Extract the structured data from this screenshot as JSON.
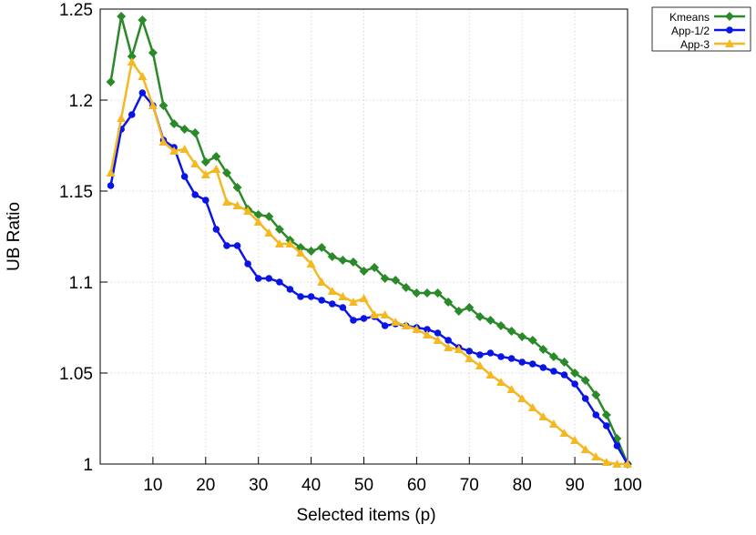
{
  "chart_data": {
    "type": "line",
    "x_label": "Selected items (p)",
    "y_label": "UB Ratio",
    "x": [
      2,
      4,
      6,
      8,
      10,
      12,
      14,
      16,
      18,
      20,
      22,
      24,
      26,
      28,
      30,
      32,
      34,
      36,
      38,
      40,
      42,
      44,
      46,
      48,
      50,
      52,
      54,
      56,
      58,
      60,
      62,
      64,
      66,
      68,
      70,
      72,
      74,
      76,
      78,
      80,
      82,
      84,
      86,
      88,
      90,
      92,
      94,
      96,
      98,
      100
    ],
    "xlim": [
      0,
      100
    ],
    "xticks": [
      10,
      20,
      30,
      40,
      50,
      60,
      70,
      80,
      90,
      100
    ],
    "ylim": [
      1,
      1.25
    ],
    "yticks": [
      1,
      1.05,
      1.1,
      1.15,
      1.2,
      1.25
    ],
    "grid": true,
    "legend": "outside-top-right",
    "series": [
      {
        "name": "Kmeans",
        "color": "#2a8a2a",
        "marker": "diamond",
        "values": [
          1.21,
          1.246,
          1.224,
          1.244,
          1.226,
          1.197,
          1.187,
          1.184,
          1.182,
          1.166,
          1.169,
          1.16,
          1.152,
          1.14,
          1.137,
          1.136,
          1.129,
          1.123,
          1.119,
          1.117,
          1.119,
          1.114,
          1.112,
          1.111,
          1.106,
          1.108,
          1.102,
          1.101,
          1.097,
          1.094,
          1.094,
          1.094,
          1.089,
          1.084,
          1.086,
          1.081,
          1.079,
          1.076,
          1.073,
          1.07,
          1.068,
          1.063,
          1.059,
          1.056,
          1.05,
          1.046,
          1.038,
          1.027,
          1.014,
          1.0
        ]
      },
      {
        "name": "App-1/2",
        "color": "#0a14e6",
        "marker": "circle",
        "values": [
          1.153,
          1.184,
          1.192,
          1.204,
          1.197,
          1.178,
          1.174,
          1.158,
          1.148,
          1.145,
          1.129,
          1.12,
          1.12,
          1.11,
          1.102,
          1.102,
          1.1,
          1.096,
          1.092,
          1.092,
          1.09,
          1.088,
          1.086,
          1.079,
          1.08,
          1.081,
          1.076,
          1.077,
          1.076,
          1.075,
          1.074,
          1.072,
          1.068,
          1.064,
          1.062,
          1.06,
          1.061,
          1.059,
          1.058,
          1.056,
          1.055,
          1.053,
          1.051,
          1.049,
          1.044,
          1.036,
          1.027,
          1.021,
          1.01,
          1.0
        ]
      },
      {
        "name": "App-3",
        "color": "#f4b822",
        "marker": "triangle",
        "values": [
          1.16,
          1.19,
          1.221,
          1.213,
          1.197,
          1.177,
          1.172,
          1.173,
          1.165,
          1.159,
          1.162,
          1.144,
          1.142,
          1.139,
          1.133,
          1.127,
          1.121,
          1.121,
          1.116,
          1.11,
          1.1,
          1.095,
          1.092,
          1.089,
          1.091,
          1.082,
          1.082,
          1.078,
          1.076,
          1.074,
          1.071,
          1.068,
          1.064,
          1.063,
          1.058,
          1.054,
          1.049,
          1.045,
          1.041,
          1.036,
          1.031,
          1.026,
          1.022,
          1.017,
          1.013,
          1.008,
          1.004,
          1.001,
          1.0,
          1.0
        ]
      }
    ]
  }
}
